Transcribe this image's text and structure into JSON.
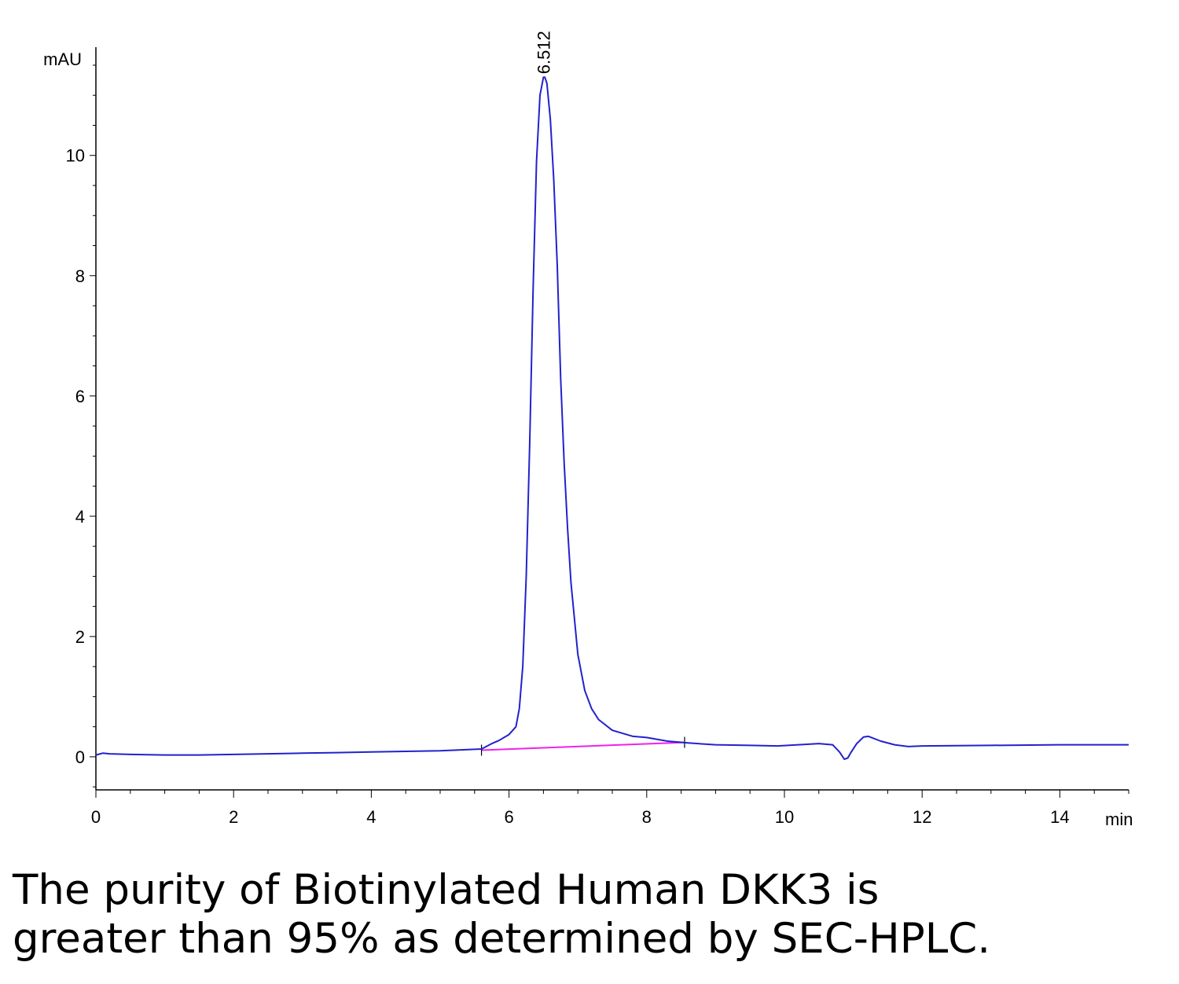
{
  "chart_data": {
    "type": "line",
    "title": "",
    "xlabel": "",
    "ylabel": "",
    "x_unit": "min",
    "y_unit": "mAU",
    "xlim": [
      0,
      15
    ],
    "ylim": [
      -0.55,
      11.8
    ],
    "x_ticks": [
      0,
      2,
      4,
      6,
      8,
      10,
      12,
      14
    ],
    "y_ticks": [
      0,
      2,
      4,
      6,
      8,
      10
    ],
    "grid": false,
    "legend": "none",
    "peak_label": "6.512",
    "colors": {
      "signal": "#2222cc",
      "baseline": "#ee22ee",
      "axes": "#000000"
    },
    "series": [
      {
        "x": [
          0,
          0.1,
          0.2,
          0.5,
          1,
          1.5,
          2,
          2.5,
          3,
          3.5,
          4,
          4.5,
          5,
          5.4,
          5.6,
          5.75,
          5.85,
          6.0,
          6.1,
          6.15,
          6.2,
          6.25,
          6.3,
          6.35,
          6.4,
          6.45,
          6.5,
          6.52,
          6.55,
          6.6,
          6.65,
          6.7,
          6.75,
          6.8,
          6.85,
          6.9,
          7.0,
          7.1,
          7.2,
          7.3,
          7.5,
          7.8,
          8.0,
          8.3,
          8.6,
          9.0,
          9.5,
          9.9,
          10.2,
          10.5,
          10.7,
          10.8,
          10.87,
          10.92,
          10.97,
          11.05,
          11.15,
          11.22,
          11.4,
          11.6,
          11.8,
          12.0,
          13.0,
          14.0,
          15.0
        ],
        "y": [
          0.03,
          0.06,
          0.05,
          0.04,
          0.03,
          0.03,
          0.04,
          0.05,
          0.06,
          0.07,
          0.08,
          0.09,
          0.1,
          0.12,
          0.13,
          0.22,
          0.27,
          0.37,
          0.5,
          0.8,
          1.5,
          3.0,
          5.2,
          7.8,
          9.9,
          11.0,
          11.3,
          11.3,
          11.2,
          10.6,
          9.6,
          8.2,
          6.3,
          4.9,
          3.8,
          2.9,
          1.7,
          1.1,
          0.8,
          0.62,
          0.44,
          0.34,
          0.32,
          0.26,
          0.23,
          0.2,
          0.19,
          0.18,
          0.2,
          0.22,
          0.2,
          0.08,
          -0.04,
          -0.02,
          0.08,
          0.22,
          0.33,
          0.34,
          0.26,
          0.2,
          0.17,
          0.18,
          0.19,
          0.2,
          0.2
        ]
      }
    ],
    "baseline": {
      "x": [
        5.6,
        8.55
      ],
      "y": [
        0.11,
        0.24
      ]
    }
  },
  "caption": {
    "line1": "The purity of Biotinylated Human DKK3 is",
    "line2": "greater than 95% as determined by SEC-HPLC."
  }
}
